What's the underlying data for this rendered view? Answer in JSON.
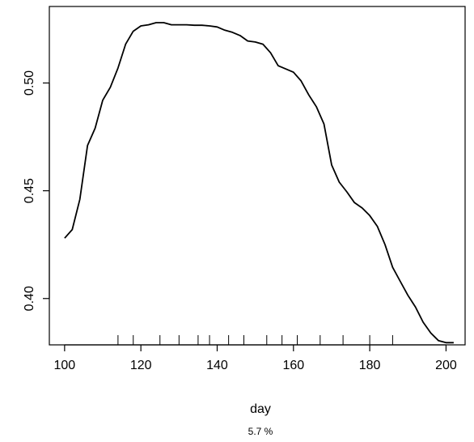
{
  "chart_data": {
    "type": "line",
    "xlabel": "day",
    "subtitle": "5.7 %",
    "xlim": [
      96,
      205
    ],
    "ylim": [
      0.3785,
      0.5355
    ],
    "x_ticks": [
      100,
      120,
      140,
      160,
      180,
      200
    ],
    "y_ticks": [
      0.4,
      0.45,
      0.5
    ],
    "y_tick_labels": [
      "0.40",
      "0.45",
      "0.50"
    ],
    "rug": [
      114,
      118,
      125,
      130,
      135,
      138,
      143,
      147,
      153,
      157,
      161,
      167,
      173,
      180,
      186
    ],
    "series": [
      {
        "x": [
          100,
          102,
          104,
          106,
          108,
          110,
          112,
          114,
          116,
          118,
          120,
          122,
          124,
          126,
          128,
          130,
          132,
          134,
          136,
          138,
          140,
          142,
          144,
          146,
          148,
          150,
          152,
          154,
          156,
          158,
          160,
          162,
          164,
          166,
          168,
          170,
          172,
          174,
          176,
          178,
          180,
          182,
          184,
          186,
          188,
          190,
          192,
          194,
          196,
          198,
          200,
          202
        ],
        "y": [
          0.428,
          0.432,
          0.446,
          0.471,
          0.479,
          0.492,
          0.498,
          0.507,
          0.518,
          0.524,
          0.5265,
          0.527,
          0.528,
          0.528,
          0.527,
          0.527,
          0.527,
          0.5268,
          0.5268,
          0.5265,
          0.526,
          0.5245,
          0.5235,
          0.522,
          0.5195,
          0.519,
          0.518,
          0.514,
          0.508,
          0.5065,
          0.505,
          0.501,
          0.4945,
          0.489,
          0.481,
          0.462,
          0.454,
          0.4495,
          0.4445,
          0.442,
          0.4385,
          0.4335,
          0.425,
          0.4145,
          0.408,
          0.4015,
          0.396,
          0.389,
          0.384,
          0.3805,
          0.3795,
          0.3795
        ]
      }
    ]
  }
}
